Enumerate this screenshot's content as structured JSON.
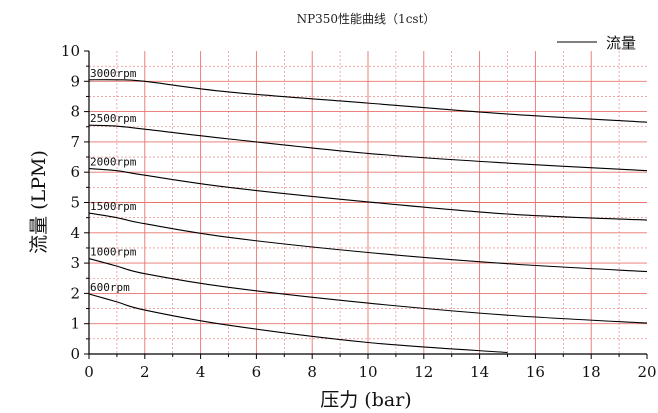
{
  "chart_data": {
    "type": "line",
    "title": "NP350性能曲线（1cst）",
    "xlabel": "压力 (bar)",
    "ylabel": "流量 (LPM)",
    "xlim": [
      0,
      20
    ],
    "ylim": [
      0,
      10
    ],
    "x_ticks": [
      "0",
      "2",
      "4",
      "6",
      "8",
      "10",
      "12",
      "14",
      "16",
      "18",
      "20"
    ],
    "y_ticks": [
      "0",
      "1",
      "2",
      "3",
      "4",
      "5",
      "6",
      "7",
      "8",
      "9",
      "10"
    ],
    "grid": true,
    "legend": {
      "position": "top-right",
      "entries": [
        "流量"
      ]
    },
    "colors": {
      "grid": "#e8736f",
      "line": "#000000"
    },
    "series": [
      {
        "label": "3000rpm",
        "x": [
          0,
          1,
          2,
          5,
          10,
          15,
          20
        ],
        "y": [
          9.05,
          9.05,
          9.0,
          8.65,
          8.28,
          7.92,
          7.65
        ]
      },
      {
        "label": "2500rpm",
        "x": [
          0,
          1,
          2,
          5,
          10,
          15,
          20
        ],
        "y": [
          7.55,
          7.52,
          7.42,
          7.1,
          6.62,
          6.3,
          6.05
        ]
      },
      {
        "label": "2000rpm",
        "x": [
          0,
          1,
          2,
          5,
          10,
          15,
          20
        ],
        "y": [
          6.12,
          6.05,
          5.9,
          5.5,
          5.02,
          4.62,
          4.42
        ]
      },
      {
        "label": "1500rpm",
        "x": [
          0,
          1,
          2,
          5,
          10,
          15,
          20
        ],
        "y": [
          4.65,
          4.5,
          4.3,
          3.85,
          3.35,
          2.98,
          2.72
        ]
      },
      {
        "label": "1000rpm",
        "x": [
          0,
          1,
          2,
          5,
          10,
          15,
          20
        ],
        "y": [
          3.15,
          2.9,
          2.65,
          2.2,
          1.68,
          1.28,
          1.02
        ]
      },
      {
        "label": "600rpm",
        "x": [
          0,
          1,
          2,
          5,
          10,
          15
        ],
        "y": [
          1.98,
          1.72,
          1.45,
          0.95,
          0.38,
          0.05
        ]
      }
    ]
  }
}
